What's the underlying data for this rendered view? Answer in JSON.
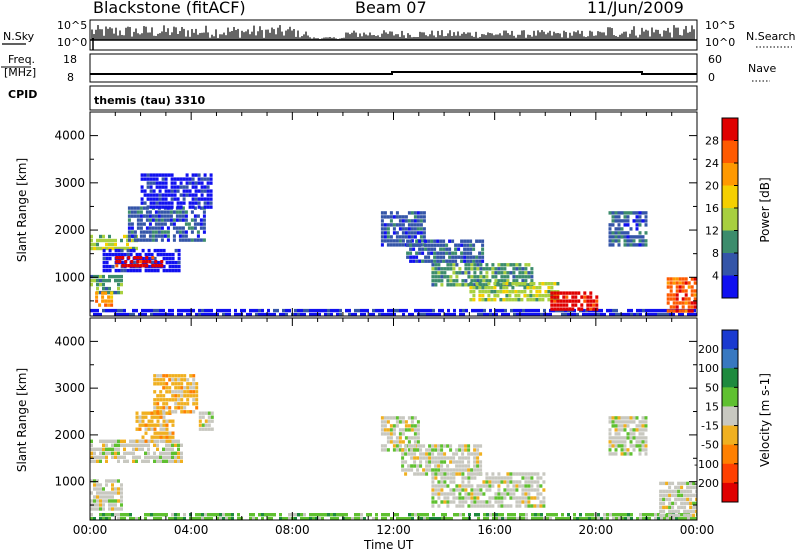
{
  "header": {
    "title": "Blackstone (fitACF)",
    "beam": "Beam 07",
    "date": "11/Jun/2009"
  },
  "sky_panel": {
    "left_label": "N.Sky",
    "right_label": "N.Search",
    "left_ticks": [
      "10^5",
      "10^0"
    ],
    "right_ticks": [
      "10^5",
      "10^0"
    ]
  },
  "freq_panel": {
    "left_label_1": "Freq.",
    "left_label_2": "[MHz]",
    "right_label": "Nave",
    "left_ticks": [
      "18",
      "8"
    ],
    "right_ticks": [
      "60",
      "0"
    ]
  },
  "cpid_panel": {
    "left_label": "CPID",
    "program": "themis (tau) 3310"
  },
  "power_colorbar": {
    "label": "Power [dB]",
    "ticks": [
      "28",
      "24",
      "20",
      "16",
      "12",
      "8",
      "4"
    ],
    "colors": [
      "#e00000",
      "#ff5a00",
      "#ff9900",
      "#f5d000",
      "#a8d040",
      "#3c8c6c",
      "#3455a8",
      "#1010f0"
    ]
  },
  "velocity_colorbar": {
    "label": "Velocity [m s-1]",
    "ticks": [
      "200",
      "100",
      "50",
      "15",
      "-15",
      "-50",
      "-100",
      "-200"
    ],
    "colors": [
      "#1a3ad0",
      "#3878c0",
      "#1e8a3e",
      "#5fc030",
      "#c8c8c0",
      "#f0b020",
      "#ff8000",
      "#ff4000",
      "#e00000"
    ]
  },
  "x_axis": {
    "label": "Time UT",
    "ticks": [
      "00:00",
      "04:00",
      "08:00",
      "12:00",
      "16:00",
      "20:00",
      "00:00"
    ]
  },
  "chart_data": [
    {
      "type": "heatmap",
      "name": "power",
      "ylabel": "Slant Range [km]",
      "xlabel": "",
      "y_ticks": [
        1000,
        2000,
        3000,
        4000
      ],
      "ylim": [
        180,
        4500
      ],
      "x_ticks_hours": [
        0,
        4,
        8,
        12,
        16,
        20,
        24
      ],
      "xlim_hours": [
        0,
        24
      ],
      "regions": [
        {
          "t0": 0.0,
          "t1": 1.8,
          "r0": 1600,
          "r1": 1900,
          "level": 4
        },
        {
          "t0": 0.5,
          "t1": 3.5,
          "r0": 1100,
          "r1": 1600,
          "level": 7
        },
        {
          "t0": 1.0,
          "t1": 2.8,
          "r0": 1200,
          "r1": 1450,
          "level": 0
        },
        {
          "t0": 0.0,
          "t1": 1.2,
          "r0": 700,
          "r1": 1050,
          "level": 5
        },
        {
          "t0": 0.2,
          "t1": 0.8,
          "r0": 400,
          "r1": 700,
          "level": 2
        },
        {
          "t0": 1.5,
          "t1": 4.5,
          "r0": 1800,
          "r1": 2500,
          "level": 6
        },
        {
          "t0": 2.0,
          "t1": 4.8,
          "r0": 2500,
          "r1": 3200,
          "level": 7
        },
        {
          "t0": 0.0,
          "t1": 24.0,
          "r0": 200,
          "r1": 330,
          "level": 7
        },
        {
          "t0": 11.5,
          "t1": 13.2,
          "r0": 1700,
          "r1": 2400,
          "level": 6
        },
        {
          "t0": 12.5,
          "t1": 15.5,
          "r0": 1300,
          "r1": 1800,
          "level": 6
        },
        {
          "t0": 13.5,
          "t1": 17.5,
          "r0": 800,
          "r1": 1300,
          "level": 5
        },
        {
          "t0": 15.0,
          "t1": 18.5,
          "r0": 500,
          "r1": 900,
          "level": 4
        },
        {
          "t0": 18.2,
          "t1": 20.0,
          "r0": 350,
          "r1": 700,
          "level": 0
        },
        {
          "t0": 20.5,
          "t1": 22.0,
          "r0": 1700,
          "r1": 2400,
          "level": 6
        },
        {
          "t0": 22.8,
          "t1": 24.0,
          "r0": 300,
          "r1": 1000,
          "level": 1
        }
      ]
    },
    {
      "type": "heatmap",
      "name": "velocity",
      "ylabel": "Slant Range [km]",
      "xlabel": "Time UT",
      "y_ticks": [
        1000,
        2000,
        3000,
        4000
      ],
      "ylim": [
        180,
        4500
      ],
      "x_ticks_hours": [
        0,
        4,
        8,
        12,
        16,
        20,
        24
      ],
      "xlim_hours": [
        0,
        24
      ],
      "regions": [
        {
          "t0": 0.0,
          "t1": 3.6,
          "r0": 1400,
          "r1": 1900,
          "level": 4
        },
        {
          "t0": 0.0,
          "t1": 1.2,
          "r0": 400,
          "r1": 1050,
          "level": 4
        },
        {
          "t0": 1.8,
          "t1": 3.3,
          "r0": 1900,
          "r1": 2500,
          "level": 5
        },
        {
          "t0": 2.5,
          "t1": 4.2,
          "r0": 2500,
          "r1": 3300,
          "level": 5
        },
        {
          "t0": 4.3,
          "t1": 4.8,
          "r0": 2100,
          "r1": 2500,
          "level": 4
        },
        {
          "t0": 0.0,
          "t1": 24.0,
          "r0": 200,
          "r1": 330,
          "level": 3
        },
        {
          "t0": 11.5,
          "t1": 13.0,
          "r0": 1700,
          "r1": 2400,
          "level": 4
        },
        {
          "t0": 12.3,
          "t1": 15.5,
          "r0": 1200,
          "r1": 1800,
          "level": 4
        },
        {
          "t0": 13.5,
          "t1": 18.0,
          "r0": 500,
          "r1": 1200,
          "level": 4
        },
        {
          "t0": 20.5,
          "t1": 22.0,
          "r0": 1600,
          "r1": 2400,
          "level": 4
        },
        {
          "t0": 22.5,
          "t1": 24.0,
          "r0": 300,
          "r1": 1000,
          "level": 4
        }
      ]
    }
  ]
}
